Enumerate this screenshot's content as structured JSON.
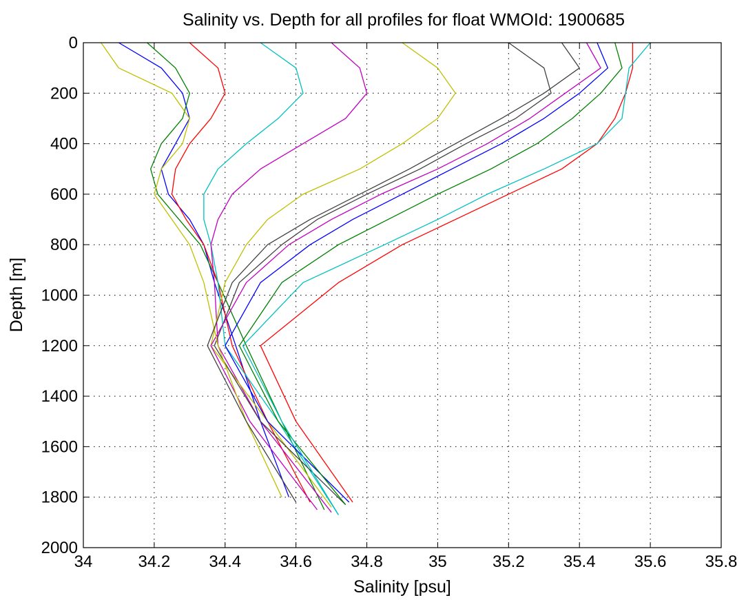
{
  "chart_data": {
    "type": "line",
    "title": "Salinity vs. Depth for all profiles for float WMOId: 1900685",
    "xlabel": "Salinity [psu]",
    "ylabel": "Depth [m]",
    "xlim": [
      34,
      35.8
    ],
    "ylim": [
      0,
      2000
    ],
    "y_reversed": true,
    "grid": "dotted",
    "legend": "none",
    "xticks": [
      "34",
      "34.2",
      "34.4",
      "34.6",
      "34.8",
      "35",
      "35.2",
      "35.4",
      "35.6",
      "35.8"
    ],
    "yticks": [
      "0",
      "200",
      "400",
      "600",
      "800",
      "1000",
      "1200",
      "1400",
      "1600",
      "1800",
      "2000"
    ],
    "colors": [
      "#0000ff",
      "#008000",
      "#ff0000",
      "#00bfbf",
      "#bf00bf",
      "#bfbf00",
      "#404040"
    ],
    "series": [
      {
        "x": [
          34.1,
          34.22,
          34.28,
          34.3,
          34.26,
          34.22,
          34.24,
          34.3,
          34.34,
          34.37,
          34.43,
          34.5,
          34.58
        ],
        "y": [
          0,
          100,
          200,
          300,
          400,
          500,
          600,
          700,
          800,
          950,
          1200,
          1500,
          1800
        ]
      },
      {
        "x": [
          34.18,
          34.26,
          34.3,
          34.28,
          34.22,
          34.19,
          34.21,
          34.27,
          34.33,
          34.38,
          34.46,
          34.56,
          34.68
        ],
        "y": [
          0,
          100,
          200,
          300,
          400,
          500,
          600,
          700,
          800,
          950,
          1200,
          1500,
          1850
        ]
      },
      {
        "x": [
          34.3,
          34.38,
          34.4,
          34.36,
          34.3,
          34.26,
          34.25,
          34.29,
          34.34,
          34.38,
          34.42,
          34.52,
          34.64
        ],
        "y": [
          0,
          100,
          200,
          300,
          400,
          500,
          600,
          700,
          800,
          950,
          1200,
          1500,
          1820
        ]
      },
      {
        "x": [
          34.5,
          34.6,
          34.62,
          34.55,
          34.46,
          34.38,
          34.34,
          34.34,
          34.36,
          34.38,
          34.4,
          34.55,
          34.72
        ],
        "y": [
          0,
          100,
          200,
          300,
          400,
          500,
          600,
          700,
          800,
          950,
          1200,
          1500,
          1870
        ]
      },
      {
        "x": [
          34.7,
          34.78,
          34.8,
          34.74,
          34.62,
          34.5,
          34.42,
          34.38,
          34.36,
          34.37,
          34.38,
          34.5,
          34.7
        ],
        "y": [
          0,
          100,
          200,
          300,
          400,
          500,
          600,
          700,
          800,
          950,
          1200,
          1500,
          1860
        ]
      },
      {
        "x": [
          34.9,
          35.0,
          35.05,
          35.0,
          34.9,
          34.78,
          34.62,
          34.52,
          34.46,
          34.4,
          34.36,
          34.52,
          34.7
        ],
        "y": [
          0,
          100,
          200,
          300,
          400,
          500,
          600,
          700,
          800,
          950,
          1200,
          1500,
          1840
        ]
      },
      {
        "x": [
          35.2,
          35.3,
          35.32,
          35.22,
          35.08,
          34.95,
          34.8,
          34.66,
          34.56,
          34.44,
          34.37,
          34.5,
          34.74
        ],
        "y": [
          0,
          100,
          200,
          300,
          400,
          500,
          600,
          700,
          800,
          950,
          1200,
          1500,
          1830
        ]
      },
      {
        "x": [
          35.45,
          35.48,
          35.4,
          35.3,
          35.18,
          35.04,
          34.9,
          34.76,
          34.64,
          34.5,
          34.4,
          34.52,
          34.75
        ],
        "y": [
          0,
          100,
          200,
          300,
          400,
          500,
          600,
          700,
          800,
          950,
          1200,
          1500,
          1820
        ]
      },
      {
        "x": [
          35.5,
          35.52,
          35.46,
          35.38,
          35.28,
          35.15,
          35.0,
          34.86,
          34.72,
          34.56,
          34.44,
          34.55,
          34.74
        ],
        "y": [
          0,
          100,
          200,
          300,
          400,
          500,
          600,
          700,
          800,
          950,
          1200,
          1500,
          1830
        ]
      },
      {
        "x": [
          35.55,
          35.55,
          35.53,
          35.5,
          35.45,
          35.35,
          35.2,
          35.05,
          34.9,
          34.72,
          34.5,
          34.6,
          34.76
        ],
        "y": [
          0,
          100,
          200,
          300,
          400,
          500,
          600,
          700,
          800,
          950,
          1200,
          1500,
          1820
        ]
      },
      {
        "x": [
          35.6,
          35.54,
          35.53,
          35.52,
          35.45,
          35.3,
          35.14,
          35.0,
          34.85,
          34.62,
          34.45,
          34.56,
          34.72
        ],
        "y": [
          0,
          100,
          200,
          300,
          400,
          500,
          600,
          700,
          800,
          950,
          1200,
          1500,
          1870
        ]
      },
      {
        "x": [
          35.42,
          35.46,
          35.36,
          35.26,
          35.14,
          35.0,
          34.84,
          34.7,
          34.58,
          34.46,
          34.36,
          34.47,
          34.66
        ],
        "y": [
          0,
          100,
          200,
          300,
          400,
          500,
          600,
          700,
          800,
          950,
          1200,
          1500,
          1850
        ]
      },
      {
        "x": [
          34.05,
          34.1,
          34.25,
          34.3,
          34.28,
          34.22,
          34.2,
          34.25,
          34.3,
          34.34,
          34.38,
          34.46,
          34.56
        ],
        "y": [
          0,
          100,
          200,
          300,
          400,
          500,
          600,
          700,
          800,
          950,
          1200,
          1500,
          1800
        ]
      },
      {
        "x": [
          35.35,
          35.4,
          35.3,
          35.18,
          35.05,
          34.92,
          34.78,
          34.64,
          34.52,
          34.42,
          34.35,
          34.46,
          34.6
        ],
        "y": [
          0,
          100,
          200,
          300,
          400,
          500,
          600,
          700,
          800,
          950,
          1200,
          1500,
          1820
        ]
      }
    ]
  }
}
